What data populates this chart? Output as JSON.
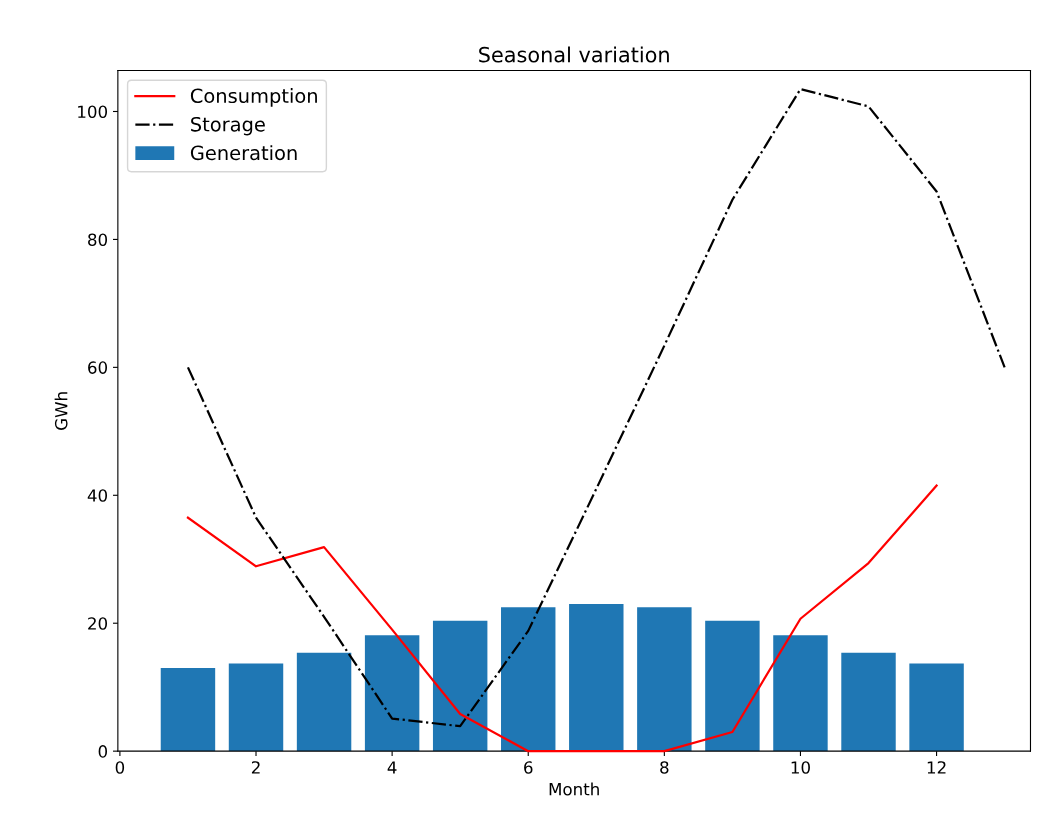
{
  "chart_data": {
    "type": "bar",
    "title": "Seasonal variation",
    "xlabel": "Month",
    "ylabel": "GWh",
    "series": [
      {
        "name": "Consumption",
        "type": "line",
        "color": "#ff0000",
        "line_style": "solid",
        "x": [
          1,
          2,
          3,
          4,
          5,
          6,
          7,
          8,
          9,
          10,
          11,
          12
        ],
        "values": [
          36.5,
          28.9,
          31.9,
          19,
          5.8,
          0,
          0,
          0,
          3.0,
          20.7,
          29.4,
          41.5
        ]
      },
      {
        "name": "Storage",
        "type": "line",
        "color": "#000000",
        "line_style": "dashdot",
        "x": [
          1,
          2,
          3,
          4,
          5,
          6,
          7,
          8,
          9,
          10,
          11,
          12,
          13
        ],
        "values": [
          60,
          36.5,
          21,
          5.1,
          3.9,
          18.8,
          41,
          63.4,
          86.2,
          103.5,
          100.8,
          87.5,
          60
        ]
      },
      {
        "name": "Generation",
        "color": "#1f77b4",
        "x": [
          1,
          2,
          3,
          4,
          5,
          6,
          7,
          8,
          9,
          10,
          11,
          12
        ],
        "values": [
          13.0,
          13.7,
          15.4,
          18.1,
          20.4,
          22.5,
          23.0,
          22.5,
          20.4,
          18.1,
          15.4,
          13.7
        ]
      }
    ],
    "xlim": [
      -0.03,
      13.38
    ],
    "xticks": [
      0,
      2,
      4,
      6,
      8,
      10,
      12
    ],
    "ylim": [
      0,
      106.4
    ],
    "yticks": [
      0,
      20,
      40,
      60,
      80,
      100
    ],
    "legend": "top left"
  }
}
